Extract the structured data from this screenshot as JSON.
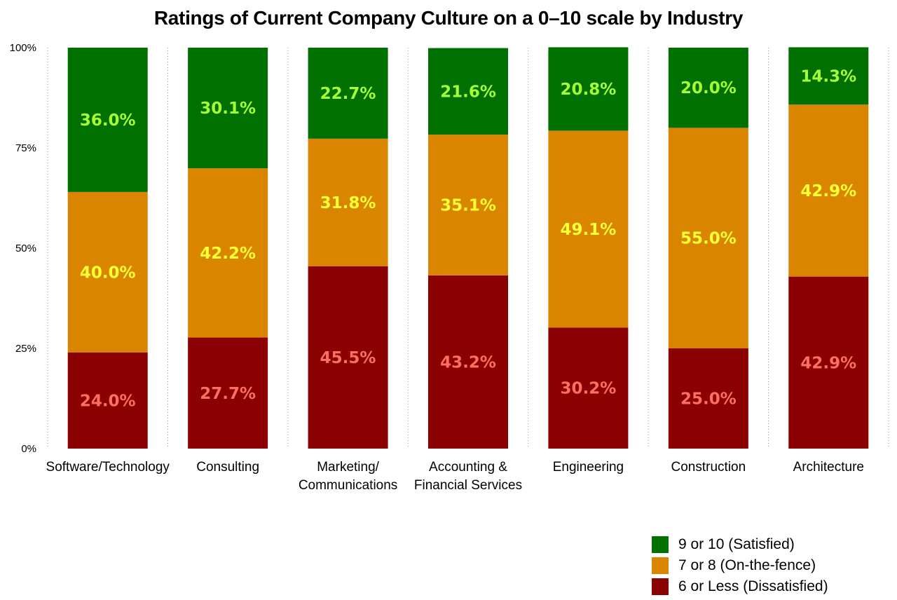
{
  "chart_data": {
    "type": "bar",
    "stacked": true,
    "title": "Ratings of Current Company Culture on a 0–10 scale by Industry",
    "xlabel": "",
    "ylabel": "",
    "ylim": [
      0,
      100
    ],
    "yticks": [
      "0%",
      "25%",
      "50%",
      "75%",
      "100%"
    ],
    "grid": "vertical dotted separators",
    "legend_position": "bottom-right",
    "categories": [
      [
        "Software/Technology"
      ],
      [
        "Consulting"
      ],
      [
        "Marketing/",
        "Communications"
      ],
      [
        "Accounting &",
        "Financial Services"
      ],
      [
        "Engineering"
      ],
      [
        "Construction"
      ],
      [
        "Architecture"
      ]
    ],
    "series": [
      {
        "name": "6 or Less (Dissatisfied)",
        "color": "#8b0000",
        "label_color": "#ff6f61",
        "values": [
          24.0,
          27.7,
          45.5,
          43.2,
          30.2,
          25.0,
          42.9
        ],
        "labels": [
          "24.0%",
          "27.7%",
          "45.5%",
          "43.2%",
          "30.2%",
          "25.0%",
          "42.9%"
        ]
      },
      {
        "name": "7 or 8 (On-the-fence)",
        "color": "#d98500",
        "label_color": "#ffff33",
        "values": [
          40.0,
          42.2,
          31.8,
          35.1,
          49.1,
          55.0,
          42.9
        ],
        "labels": [
          "40.0%",
          "42.2%",
          "31.8%",
          "35.1%",
          "49.1%",
          "55.0%",
          "42.9%"
        ]
      },
      {
        "name": "9 or 10 (Satisfied)",
        "color": "#007000",
        "label_color": "#a6ff33",
        "values": [
          36.0,
          30.1,
          22.7,
          21.6,
          20.8,
          20.0,
          14.3
        ],
        "labels": [
          "36.0%",
          "30.1%",
          "22.7%",
          "21.6%",
          "20.8%",
          "20.0%",
          "14.3%"
        ]
      }
    ],
    "legend_order": [
      2,
      1,
      0
    ]
  }
}
